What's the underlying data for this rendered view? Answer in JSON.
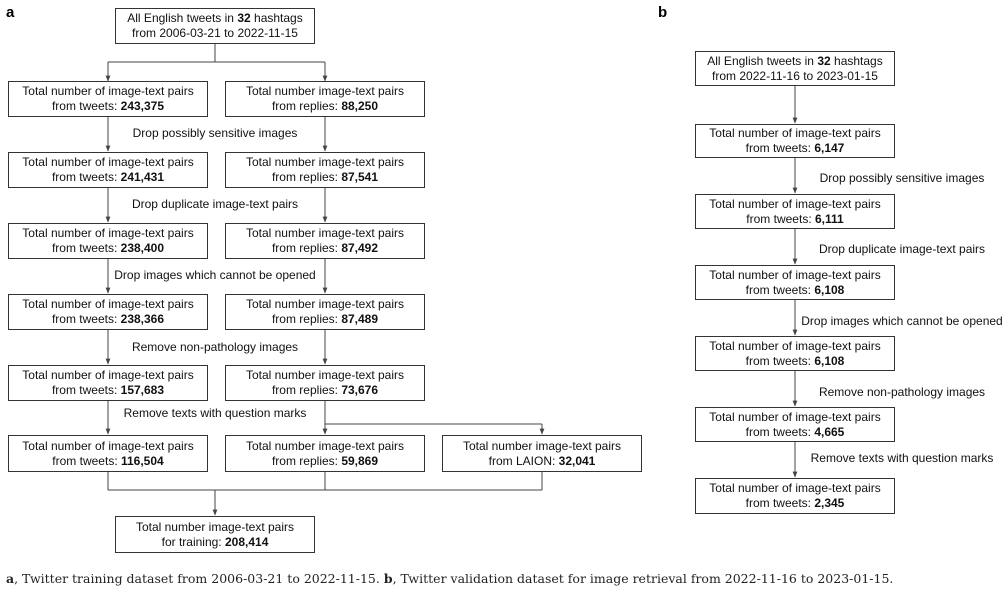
{
  "panel_a": {
    "label": "a",
    "source": {
      "line1_pre": "All English tweets in ",
      "line1_bold": "32",
      "line1_post": " hashtags",
      "line2": "from 2006-03-21 to 2022-11-15"
    },
    "steps": [
      "Drop possibly sensitive images",
      "Drop duplicate image-text pairs",
      "Drop images which cannot be opened",
      "Remove non-pathology images",
      "Remove texts with question marks"
    ],
    "tweets": [
      {
        "line1": "Total number of image-text pairs",
        "line2_pre": "from tweets: ",
        "value": "243,375"
      },
      {
        "line1": "Total number of image-text pairs",
        "line2_pre": "from tweets: ",
        "value": "241,431"
      },
      {
        "line1": "Total number of image-text pairs",
        "line2_pre": "from tweets: ",
        "value": "238,400"
      },
      {
        "line1": "Total number of image-text pairs",
        "line2_pre": "from tweets: ",
        "value": "238,366"
      },
      {
        "line1": "Total number of image-text pairs",
        "line2_pre": "from tweets: ",
        "value": "157,683"
      },
      {
        "line1": "Total number of image-text pairs",
        "line2_pre": "from tweets: ",
        "value": "116,504"
      }
    ],
    "replies": [
      {
        "line1": "Total number image-text pairs",
        "line2_pre": "from replies: ",
        "value": "88,250"
      },
      {
        "line1": "Total number image-text pairs",
        "line2_pre": "from replies: ",
        "value": "87,541"
      },
      {
        "line1": "Total number image-text pairs",
        "line2_pre": "from replies: ",
        "value": "87,492"
      },
      {
        "line1": "Total number image-text pairs",
        "line2_pre": "from replies: ",
        "value": "87,489"
      },
      {
        "line1": "Total number image-text pairs",
        "line2_pre": "from replies: ",
        "value": "73,676"
      },
      {
        "line1": "Total number image-text pairs",
        "line2_pre": "from replies: ",
        "value": "59,869"
      }
    ],
    "laion": {
      "line1": "Total number image-text pairs",
      "line2_pre": "from LAION: ",
      "value": "32,041"
    },
    "training": {
      "line1": "Total number image-text pairs",
      "line2_pre": "for training: ",
      "value": "208,414"
    }
  },
  "panel_b": {
    "label": "b",
    "source": {
      "line1_pre": "All English tweets in ",
      "line1_bold": "32",
      "line1_post": " hashtags",
      "line2": "from 2022-11-16 to 2023-01-15"
    },
    "steps": [
      "Drop possibly sensitive images",
      "Drop duplicate image-text pairs",
      "Drop images which cannot be opened",
      "Remove non-pathology images",
      "Remove texts with question marks"
    ],
    "tweets": [
      {
        "line1": "Total number of image-text pairs",
        "line2_pre": "from tweets: ",
        "value": "6,147"
      },
      {
        "line1": "Total number of image-text pairs",
        "line2_pre": "from tweets: ",
        "value": "6,111"
      },
      {
        "line1": "Total number of image-text pairs",
        "line2_pre": "from tweets: ",
        "value": "6,108"
      },
      {
        "line1": "Total number of image-text pairs",
        "line2_pre": "from tweets: ",
        "value": "6,108"
      },
      {
        "line1": "Total number of image-text pairs",
        "line2_pre": "from tweets: ",
        "value": "4,665"
      },
      {
        "line1": "Total number of image-text pairs",
        "line2_pre": "from tweets: ",
        "value": "2,345"
      }
    ]
  },
  "caption": {
    "a_label": "a",
    "a_text": ", Twitter training dataset from 2006-03-21 to 2022-11-15. ",
    "b_label": "b",
    "b_text": ", Twitter validation dataset for image retrieval from 2022-11-16 to 2023-01-15."
  }
}
